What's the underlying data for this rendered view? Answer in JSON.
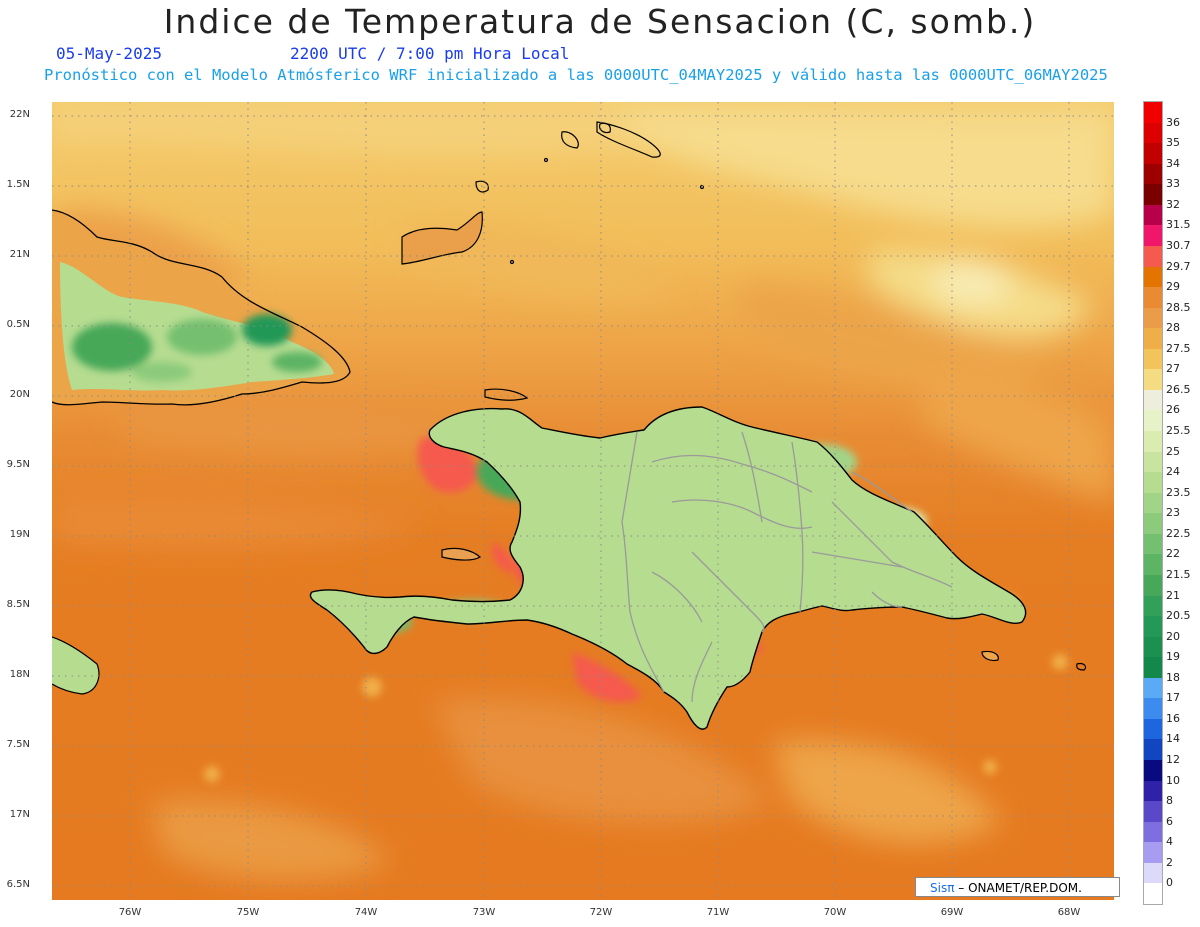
{
  "title": "Indice de Temperatura de Sensacion (C, somb.)",
  "date": "05-May-2025",
  "time": "2200 UTC / 7:00 pm Hora Local",
  "model_line": "Pronóstico con el Modelo Atmósferico WRF inicializado a las 0000UTC_04MAY2025 y válido hasta las  0000UTC_06MAY2025",
  "lat_labels": [
    "22N",
    "1.5N",
    "21N",
    "0.5N",
    "20N",
    "9.5N",
    "19N",
    "8.5N",
    "18N",
    "7.5N",
    "17N",
    "6.5N"
  ],
  "lon_labels": [
    "76W",
    "75W",
    "74W",
    "73W",
    "72W",
    "71W",
    "70W",
    "69W",
    "68W"
  ],
  "colorbar": [
    {
      "label": "36",
      "color": "#f20000"
    },
    {
      "label": "35",
      "color": "#dd0000"
    },
    {
      "label": "34",
      "color": "#c20000"
    },
    {
      "label": "33",
      "color": "#9e0000"
    },
    {
      "label": "32",
      "color": "#7a0000"
    },
    {
      "label": "31.5",
      "color": "#b8004a"
    },
    {
      "label": "30.7",
      "color": "#f0166a"
    },
    {
      "label": "29.7",
      "color": "#f55a4e"
    },
    {
      "label": "29",
      "color": "#e37400"
    },
    {
      "label": "28.5",
      "color": "#ea8a32"
    },
    {
      "label": "28",
      "color": "#ea9c48"
    },
    {
      "label": "27.5",
      "color": "#f0ae48"
    },
    {
      "label": "27",
      "color": "#f3c45c"
    },
    {
      "label": "26.5",
      "color": "#f5dc82"
    },
    {
      "label": "26",
      "color": "#eeeedc"
    },
    {
      "label": "25.5",
      "color": "#e8f2c8"
    },
    {
      "label": "25",
      "color": "#daecb0"
    },
    {
      "label": "24",
      "color": "#c8e4a0"
    },
    {
      "label": "23.5",
      "color": "#b6dc90"
    },
    {
      "label": "23",
      "color": "#a2d488"
    },
    {
      "label": "22.5",
      "color": "#8ccb7c"
    },
    {
      "label": "22",
      "color": "#74c070"
    },
    {
      "label": "21.5",
      "color": "#5cb464"
    },
    {
      "label": "21",
      "color": "#46a858"
    },
    {
      "label": "20.5",
      "color": "#32a058"
    },
    {
      "label": "20",
      "color": "#249856"
    },
    {
      "label": "19",
      "color": "#1c9050"
    },
    {
      "label": "18",
      "color": "#12884a"
    },
    {
      "label": "17",
      "color": "#5aaaf6"
    },
    {
      "label": "16",
      "color": "#3c8cf0"
    },
    {
      "label": "14",
      "color": "#1e66e0"
    },
    {
      "label": "12",
      "color": "#1246c0"
    },
    {
      "label": "10",
      "color": "#0a0a80"
    },
    {
      "label": "8",
      "color": "#3022a8"
    },
    {
      "label": "6",
      "color": "#5a48c8"
    },
    {
      "label": "4",
      "color": "#7e6ee0"
    },
    {
      "label": "2",
      "color": "#a89cf2"
    },
    {
      "label": "0",
      "color": "#dcdaf8"
    }
  ],
  "colorbar_bottom_color": "#ffffff",
  "credit": {
    "brand": "Sisπ",
    "text": " – ONAMET/REP.DOM."
  },
  "colors": {
    "sea": "#e57d22",
    "land_green": "#74c070",
    "subtitle_blue": "#1a3cf0",
    "subtitle_cyan": "#1aa0e8"
  }
}
